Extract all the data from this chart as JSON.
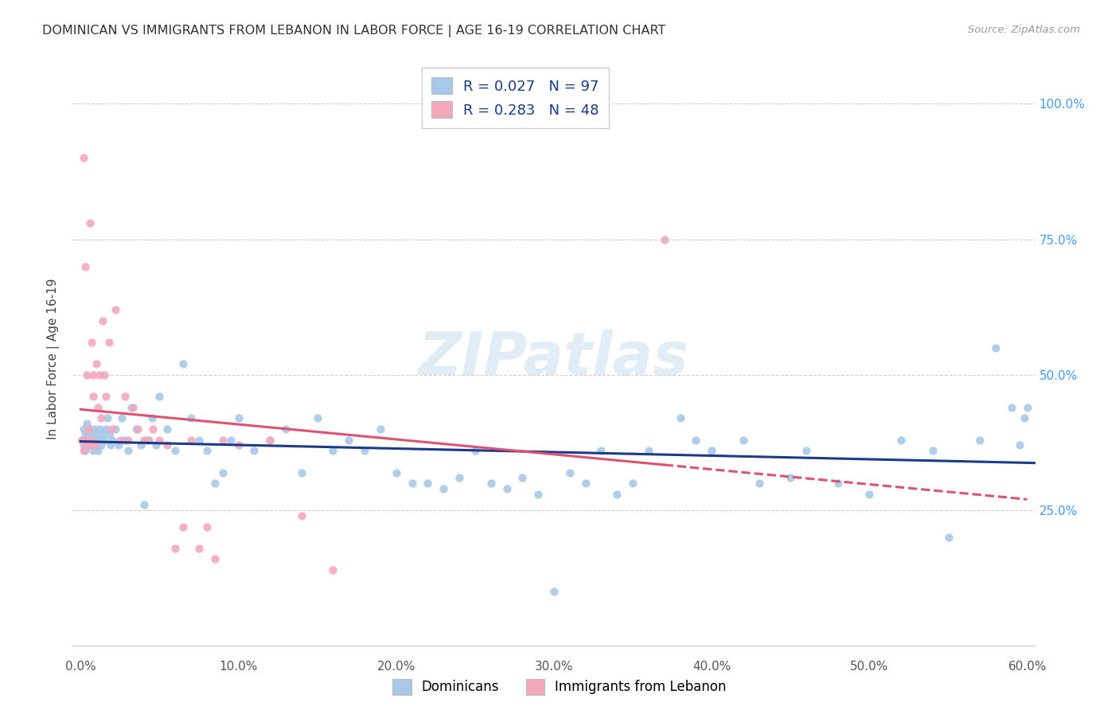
{
  "title": "DOMINICAN VS IMMIGRANTS FROM LEBANON IN LABOR FORCE | AGE 16-19 CORRELATION CHART",
  "source": "Source: ZipAtlas.com",
  "ylabel": "In Labor Force | Age 16-19",
  "xlim": [
    -0.005,
    0.605
  ],
  "ylim": [
    -0.02,
    1.08
  ],
  "xtick_labels": [
    "0.0%",
    "10.0%",
    "20.0%",
    "30.0%",
    "40.0%",
    "50.0%",
    "60.0%"
  ],
  "xtick_vals": [
    0.0,
    0.1,
    0.2,
    0.3,
    0.4,
    0.5,
    0.6
  ],
  "ytick_vals": [
    0.25,
    0.5,
    0.75,
    1.0
  ],
  "ytick_labels": [
    "25.0%",
    "50.0%",
    "75.0%",
    "100.0%"
  ],
  "blue_R": 0.027,
  "blue_N": 97,
  "pink_R": 0.283,
  "pink_N": 48,
  "blue_color": "#a8c8e8",
  "pink_color": "#f4a8bc",
  "blue_line_color": "#1a3a8a",
  "pink_line_color": "#e05070",
  "watermark": "ZIPatlas",
  "legend_label_blue": "Dominicans",
  "legend_label_pink": "Immigrants from Lebanon",
  "blue_scatter_x": [
    0.001,
    0.002,
    0.002,
    0.003,
    0.003,
    0.004,
    0.004,
    0.005,
    0.005,
    0.006,
    0.006,
    0.007,
    0.007,
    0.008,
    0.008,
    0.009,
    0.009,
    0.01,
    0.01,
    0.011,
    0.011,
    0.012,
    0.013,
    0.014,
    0.015,
    0.016,
    0.017,
    0.018,
    0.019,
    0.02,
    0.022,
    0.024,
    0.026,
    0.028,
    0.03,
    0.032,
    0.035,
    0.038,
    0.04,
    0.042,
    0.045,
    0.048,
    0.05,
    0.055,
    0.06,
    0.065,
    0.07,
    0.075,
    0.08,
    0.085,
    0.09,
    0.095,
    0.1,
    0.11,
    0.12,
    0.13,
    0.14,
    0.15,
    0.16,
    0.17,
    0.18,
    0.19,
    0.2,
    0.21,
    0.22,
    0.23,
    0.24,
    0.25,
    0.26,
    0.27,
    0.28,
    0.29,
    0.3,
    0.31,
    0.32,
    0.33,
    0.34,
    0.35,
    0.36,
    0.38,
    0.39,
    0.4,
    0.42,
    0.43,
    0.45,
    0.46,
    0.48,
    0.5,
    0.52,
    0.54,
    0.55,
    0.57,
    0.58,
    0.59,
    0.595,
    0.598,
    0.6
  ],
  "blue_scatter_y": [
    0.38,
    0.4,
    0.37,
    0.39,
    0.36,
    0.38,
    0.41,
    0.37,
    0.39,
    0.38,
    0.4,
    0.37,
    0.39,
    0.38,
    0.36,
    0.4,
    0.38,
    0.37,
    0.39,
    0.38,
    0.36,
    0.4,
    0.37,
    0.39,
    0.38,
    0.4,
    0.42,
    0.39,
    0.37,
    0.38,
    0.4,
    0.37,
    0.42,
    0.38,
    0.36,
    0.44,
    0.4,
    0.37,
    0.26,
    0.38,
    0.42,
    0.37,
    0.46,
    0.4,
    0.36,
    0.52,
    0.42,
    0.38,
    0.36,
    0.3,
    0.32,
    0.38,
    0.42,
    0.36,
    0.38,
    0.4,
    0.32,
    0.42,
    0.36,
    0.38,
    0.36,
    0.4,
    0.32,
    0.3,
    0.3,
    0.29,
    0.31,
    0.36,
    0.3,
    0.29,
    0.31,
    0.28,
    0.1,
    0.32,
    0.3,
    0.36,
    0.28,
    0.3,
    0.36,
    0.42,
    0.38,
    0.36,
    0.38,
    0.3,
    0.31,
    0.36,
    0.3,
    0.28,
    0.38,
    0.36,
    0.2,
    0.38,
    0.55,
    0.44,
    0.37,
    0.42,
    0.44
  ],
  "pink_scatter_x": [
    0.001,
    0.002,
    0.002,
    0.003,
    0.003,
    0.004,
    0.004,
    0.005,
    0.005,
    0.006,
    0.006,
    0.007,
    0.007,
    0.008,
    0.008,
    0.009,
    0.01,
    0.011,
    0.012,
    0.013,
    0.014,
    0.015,
    0.016,
    0.018,
    0.02,
    0.022,
    0.025,
    0.028,
    0.03,
    0.033,
    0.036,
    0.04,
    0.043,
    0.046,
    0.05,
    0.055,
    0.06,
    0.065,
    0.07,
    0.075,
    0.08,
    0.085,
    0.09,
    0.1,
    0.12,
    0.14,
    0.16,
    0.37
  ],
  "pink_scatter_y": [
    0.38,
    0.9,
    0.36,
    0.38,
    0.7,
    0.37,
    0.5,
    0.38,
    0.4,
    0.78,
    0.37,
    0.56,
    0.38,
    0.5,
    0.46,
    0.37,
    0.52,
    0.44,
    0.5,
    0.42,
    0.6,
    0.5,
    0.46,
    0.56,
    0.4,
    0.62,
    0.38,
    0.46,
    0.38,
    0.44,
    0.4,
    0.38,
    0.38,
    0.4,
    0.38,
    0.37,
    0.18,
    0.22,
    0.38,
    0.18,
    0.22,
    0.16,
    0.38,
    0.37,
    0.38,
    0.24,
    0.14,
    0.75
  ],
  "pink_line_start_x": 0.0,
  "pink_line_end_solid": 0.37,
  "pink_line_end_x": 0.6,
  "grid_color": "#d0d0d0",
  "right_axis_color": "#4499ff"
}
